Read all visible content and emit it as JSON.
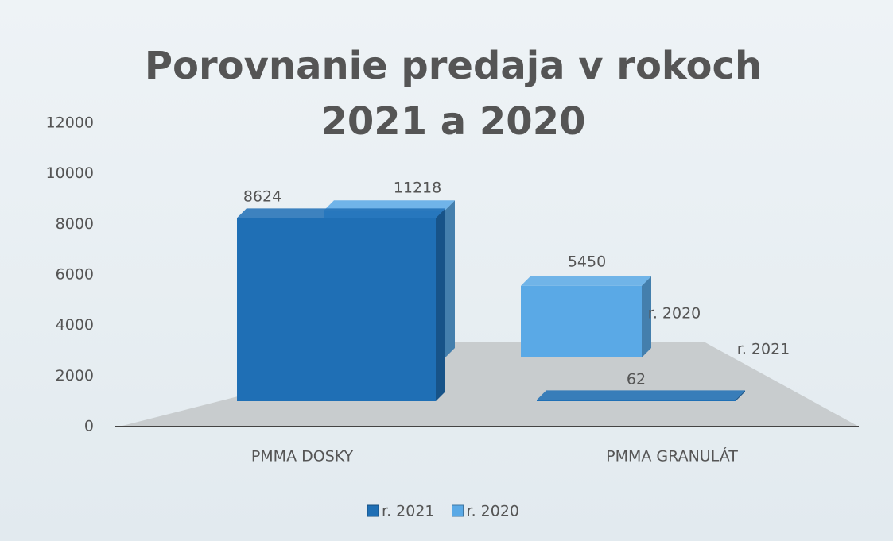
{
  "chart_data": {
    "type": "bar3d",
    "title": "Porovnanie predaja v rokoch 2021 a 2020",
    "categories": [
      "PMMA DOSKY",
      "PMMA GRANULÁT"
    ],
    "series": [
      {
        "name": "r. 2021",
        "color": "#1f6fb5",
        "values": [
          8624,
          62
        ]
      },
      {
        "name": "r. 2020",
        "color": "#5aa9e6",
        "values": [
          11218,
          5450
        ]
      }
    ],
    "ylim": [
      0,
      12000
    ],
    "yticks": [
      0,
      2000,
      4000,
      6000,
      8000,
      10000,
      12000
    ],
    "legend": "bottom"
  }
}
